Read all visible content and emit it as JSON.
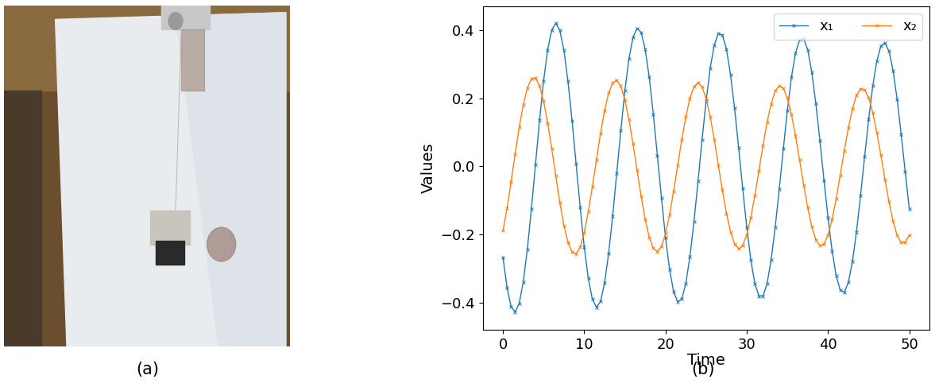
{
  "panel_labels": [
    "(a)",
    "(b)"
  ],
  "chart_data": {
    "type": "line",
    "x_label": "Time",
    "y_label": "Values",
    "x": [
      0,
      0.5,
      1,
      1.5,
      2,
      2.5,
      3,
      3.5,
      4,
      4.5,
      5,
      5.5,
      6,
      6.5,
      7,
      7.5,
      8,
      8.5,
      9,
      9.5,
      10,
      10.5,
      11,
      11.5,
      12,
      12.5,
      13,
      13.5,
      14,
      14.5,
      15,
      15.5,
      16,
      16.5,
      17,
      17.5,
      18,
      18.5,
      19,
      19.5,
      20,
      20.5,
      21,
      21.5,
      22,
      22.5,
      23,
      23.5,
      24,
      24.5,
      25,
      25.5,
      26,
      26.5,
      27,
      27.5,
      28,
      28.5,
      29,
      29.5,
      30,
      30.5,
      31,
      31.5,
      32,
      32.5,
      33,
      33.5,
      34,
      34.5,
      35,
      35.5,
      36,
      36.5,
      37,
      37.5,
      38,
      38.5,
      39,
      39.5,
      40,
      40.5,
      41,
      41.5,
      42,
      42.5,
      43,
      43.5,
      44,
      44.5,
      45,
      45.5,
      46,
      46.5,
      47,
      47.5,
      48,
      48.5,
      49,
      49.5,
      50
    ],
    "series": [
      {
        "name": "x₁",
        "color": "#1f77b4",
        "marker": "x",
        "line_style": "solid",
        "values": [
          -0.267,
          -0.356,
          -0.412,
          -0.428,
          -0.402,
          -0.339,
          -0.243,
          -0.124,
          0.006,
          0.136,
          0.252,
          0.343,
          0.401,
          0.421,
          0.4,
          0.341,
          0.25,
          0.135,
          0.007,
          -0.12,
          -0.237,
          -0.329,
          -0.39,
          -0.414,
          -0.397,
          -0.343,
          -0.256,
          -0.145,
          -0.02,
          0.106,
          0.222,
          0.316,
          0.379,
          0.406,
          0.394,
          0.344,
          0.262,
          0.154,
          0.032,
          -0.092,
          -0.208,
          -0.303,
          -0.368,
          -0.398,
          -0.39,
          -0.344,
          -0.266,
          -0.163,
          -0.044,
          0.079,
          0.193,
          0.289,
          0.357,
          0.39,
          0.386,
          0.345,
          0.27,
          0.171,
          0.055,
          -0.065,
          -0.179,
          -0.275,
          -0.345,
          -0.381,
          -0.381,
          -0.344,
          -0.274,
          -0.179,
          -0.066,
          0.052,
          0.165,
          0.262,
          0.333,
          0.372,
          0.376,
          0.343,
          0.277,
          0.185,
          0.076,
          -0.04,
          -0.151,
          -0.248,
          -0.321,
          -0.363,
          -0.37,
          -0.341,
          -0.28,
          -0.192,
          -0.086,
          0.028,
          0.138,
          0.236,
          0.309,
          0.354,
          0.363,
          0.339,
          0.282,
          0.198,
          0.095,
          -0.016,
          -0.125
        ]
      },
      {
        "name": "x₂",
        "color": "#ff7f0e",
        "marker": "x",
        "line_style": "solid",
        "values": [
          -0.189,
          -0.123,
          -0.045,
          0.037,
          0.115,
          0.181,
          0.231,
          0.257,
          0.26,
          0.237,
          0.192,
          0.128,
          0.053,
          -0.028,
          -0.106,
          -0.173,
          -0.223,
          -0.252,
          -0.257,
          -0.237,
          -0.194,
          -0.133,
          -0.06,
          0.019,
          0.096,
          0.164,
          0.215,
          0.246,
          0.253,
          0.236,
          0.196,
          0.138,
          0.067,
          -0.011,
          -0.087,
          -0.155,
          -0.208,
          -0.24,
          -0.25,
          -0.235,
          -0.198,
          -0.142,
          -0.073,
          0.003,
          0.078,
          0.146,
          0.2,
          0.234,
          0.246,
          0.234,
          0.199,
          0.146,
          0.079,
          0.004,
          -0.07,
          -0.138,
          -0.192,
          -0.228,
          -0.242,
          -0.232,
          -0.201,
          -0.15,
          -0.085,
          -0.012,
          0.062,
          0.13,
          0.184,
          0.222,
          0.237,
          0.23,
          0.201,
          0.153,
          0.09,
          0.019,
          -0.054,
          -0.121,
          -0.177,
          -0.215,
          -0.233,
          -0.228,
          -0.202,
          -0.156,
          -0.095,
          -0.026,
          0.046,
          0.113,
          0.169,
          0.209,
          0.228,
          0.226,
          0.202,
          0.158,
          0.1,
          0.033,
          -0.038,
          -0.104,
          -0.161,
          -0.202,
          -0.223,
          -0.223,
          -0.201
        ]
      }
    ],
    "xlim": [
      -2.5,
      52.5
    ],
    "xticks": [
      0,
      10,
      20,
      30,
      40,
      50
    ],
    "ylim": [
      -0.48,
      0.47
    ],
    "yticks": [
      {
        "value": -0.4,
        "label": "−0.4"
      },
      {
        "value": -0.2,
        "label": "−0.2"
      },
      0.0,
      0.2,
      0.4
    ],
    "legend": "upper right",
    "grid": false
  }
}
